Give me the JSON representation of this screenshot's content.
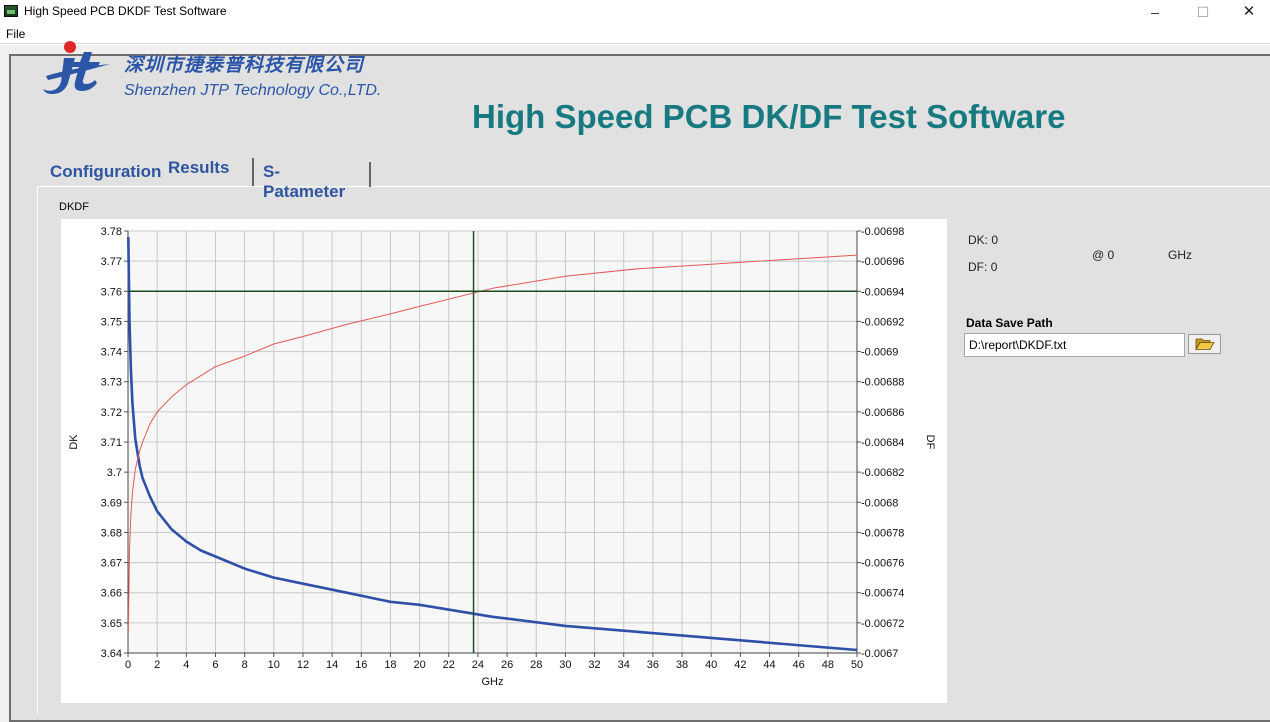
{
  "window": {
    "title": "High Speed PCB DKDF Test Software",
    "controls": {
      "minimize": "–",
      "maximize": "☐",
      "close": "✕"
    }
  },
  "menu": {
    "items": [
      "File"
    ]
  },
  "header": {
    "company_cn": "深圳市捷泰普科技有限公司",
    "company_en": "Shenzhen JTP Technology Co.,LTD.",
    "app_title": "High Speed PCB DK/DF Test Software",
    "logo_icon": "jt-logo-icon"
  },
  "tabs": [
    {
      "label": "Configuration",
      "active": false
    },
    {
      "label": "Results",
      "active": true
    },
    {
      "label": "S-Patameter",
      "active": false
    }
  ],
  "results": {
    "graph_caption": "DKDF",
    "readout": {
      "dk_label": "DK:",
      "dk_value": "0",
      "df_label": "DF:",
      "df_value": "0",
      "at_label": "@",
      "at_value": "0",
      "unit": "GHz"
    },
    "save_path": {
      "label": "Data Save Path",
      "value": "D:\\report\\DKDF.txt",
      "browse_icon": "folder-open-icon"
    }
  },
  "colors": {
    "dk_line": "#2f4fa8",
    "df_line": "#e05a5a",
    "cursor": "#1e4b1e",
    "grid": "#c8c8c8",
    "accent_title": "#167a80",
    "company_blue": "#2b56a8"
  },
  "chart_data": {
    "type": "line",
    "xlabel": "GHz",
    "ylabel": "DK",
    "y2label": "DF",
    "xlim": [
      0,
      50
    ],
    "ylim": [
      3.64,
      3.78
    ],
    "y2lim": [
      0.0067,
      0.00698
    ],
    "x_ticks": [
      0,
      2,
      4,
      6,
      8,
      10,
      12,
      14,
      16,
      18,
      20,
      22,
      24,
      26,
      28,
      30,
      32,
      34,
      36,
      38,
      40,
      42,
      44,
      46,
      48,
      50
    ],
    "y_ticks": [
      "3.78",
      "3.77",
      "3.76",
      "3.75",
      "3.74",
      "3.73",
      "3.72",
      "3.71",
      "3.7",
      "3.69",
      "3.68",
      "3.67",
      "3.66",
      "3.65",
      "3.64"
    ],
    "y2_ticks": [
      "0.00698",
      "0.00696",
      "0.00694",
      "0.00692",
      "0.0069",
      "0.00688",
      "0.00686",
      "0.00684",
      "0.00682",
      "0.0068",
      "0.00678",
      "0.00676",
      "0.00674",
      "0.00672",
      "0.0067"
    ],
    "cursor": {
      "x": 23.7,
      "dk": 3.76
    },
    "series": [
      {
        "name": "DK",
        "axis": "left",
        "color": "#2f4fa8",
        "x": [
          0.02,
          0.1,
          0.2,
          0.3,
          0.5,
          0.8,
          1,
          1.5,
          2,
          3,
          4,
          5,
          6,
          8,
          10,
          12,
          15,
          18,
          20,
          25,
          30,
          35,
          40,
          45,
          50
        ],
        "y": [
          3.778,
          3.75,
          3.734,
          3.723,
          3.711,
          3.702,
          3.698,
          3.692,
          3.687,
          3.681,
          3.677,
          3.674,
          3.672,
          3.668,
          3.665,
          3.663,
          3.66,
          3.657,
          3.656,
          3.652,
          3.649,
          3.647,
          3.645,
          3.643,
          3.641
        ]
      },
      {
        "name": "DF",
        "axis": "right",
        "color": "#e05a5a",
        "x": [
          0.02,
          0.1,
          0.2,
          0.3,
          0.5,
          0.8,
          1,
          1.5,
          2,
          3,
          4,
          5,
          6,
          8,
          10,
          12,
          15,
          18,
          20,
          25,
          30,
          35,
          40,
          45,
          50
        ],
        "y": [
          0.006714,
          0.006768,
          0.006792,
          0.006806,
          0.006822,
          0.006834,
          0.00684,
          0.006852,
          0.00686,
          0.00687,
          0.006878,
          0.006884,
          0.00689,
          0.006897,
          0.006905,
          0.00691,
          0.006918,
          0.006925,
          0.00693,
          0.006942,
          0.00695,
          0.006955,
          0.006958,
          0.006961,
          0.006964
        ]
      }
    ]
  }
}
